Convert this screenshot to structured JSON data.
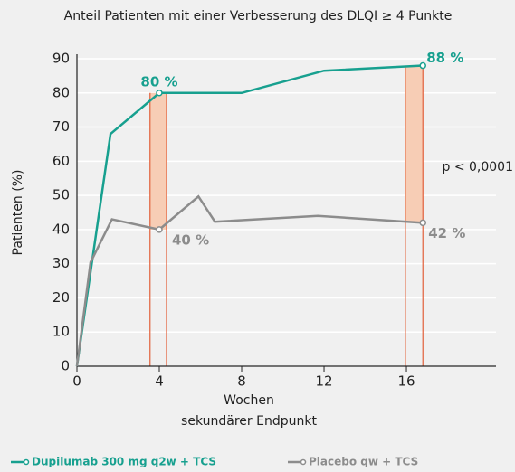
{
  "chart_data": {
    "type": "line",
    "title": "Anteil Patienten mit einer Verbesserung des DLQI ≥ 4 Punkte",
    "ylabel": "Patienten (%)",
    "xlabel": [
      "Wochen",
      "sekundärer Endpunkt"
    ],
    "xlim": [
      0,
      20.35
    ],
    "xticks": [
      0,
      4,
      8,
      12,
      16
    ],
    "ylim": [
      0,
      90
    ],
    "yticks": [
      0,
      10,
      20,
      30,
      40,
      50,
      60,
      70,
      80,
      90
    ],
    "grid": true,
    "series": [
      {
        "name": "Dupilumab 300 mg q2w + TCS",
        "color": "#17a08f",
        "x": [
          0,
          1.63,
          4,
          8,
          12,
          16.8
        ],
        "values": [
          0,
          68,
          80,
          80,
          86.5,
          88
        ],
        "value_labels": [
          null,
          null,
          "80 %",
          null,
          null,
          "88 %"
        ]
      },
      {
        "name": "Placebo qw + TCS",
        "color": "#8c8c8c",
        "x": [
          0,
          0.66,
          1.7,
          4,
          5.9,
          6.7,
          11.7,
          16.8
        ],
        "values": [
          0,
          30.4,
          43,
          40,
          49.7,
          42.3,
          44,
          42
        ],
        "value_labels": [
          null,
          null,
          null,
          "40 %",
          null,
          null,
          null,
          "42 %"
        ]
      }
    ],
    "bands": [
      [
        3.55,
        4.35
      ],
      [
        15.95,
        16.8
      ]
    ],
    "band_color": "#f7cdb5",
    "band_line_color": "#e2603a",
    "annotation": "p < 0,0001"
  }
}
